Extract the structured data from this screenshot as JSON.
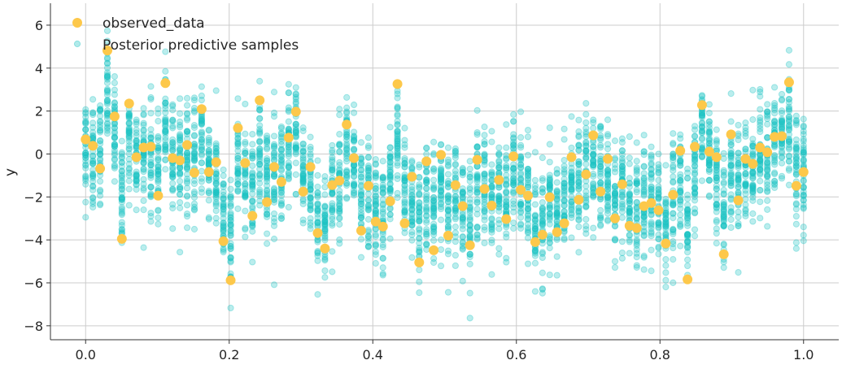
{
  "chart_data": {
    "type": "scatter",
    "title": "",
    "xlabel": "",
    "ylabel": "y",
    "xlim": [
      -0.049,
      1.049
    ],
    "ylim": [
      -8.65,
      7.02
    ],
    "xticks": [
      0.0,
      0.2,
      0.4,
      0.6,
      0.8,
      1.0
    ],
    "xtick_labels": [
      "0.0",
      "0.2",
      "0.4",
      "0.6",
      "0.8",
      "1.0"
    ],
    "yticks": [
      -8,
      -6,
      -4,
      -2,
      0,
      2,
      4,
      6
    ],
    "ytick_labels": [
      "−8",
      "−6",
      "−4",
      "−2",
      "0",
      "2",
      "4",
      "6"
    ],
    "grid": true,
    "legend_placement": "top-left",
    "colors": {
      "observed": "#fdc84a",
      "samples": "#1cc2c2"
    },
    "series": [
      {
        "name": "observed_data",
        "x_range": [
          0,
          1
        ],
        "count": 100,
        "y": [
          0.68,
          0.38,
          -0.68,
          4.82,
          1.75,
          -3.95,
          2.35,
          -0.15,
          0.3,
          0.34,
          -1.94,
          3.3,
          -0.19,
          -0.3,
          0.42,
          -0.87,
          2.09,
          -0.84,
          -0.38,
          -4.06,
          -5.88,
          1.21,
          -0.42,
          -2.88,
          2.5,
          -2.24,
          -0.6,
          -1.3,
          0.76,
          1.97,
          -1.75,
          -0.6,
          -3.68,
          -4.4,
          -1.45,
          -1.24,
          1.37,
          -0.19,
          -3.57,
          -1.48,
          -3.15,
          -3.38,
          -2.2,
          3.26,
          -3.23,
          -1.06,
          -5.05,
          -0.34,
          -4.48,
          -0.04,
          -3.8,
          -1.45,
          -2.43,
          -4.25,
          -0.27,
          -1.63,
          -2.4,
          -1.21,
          -3.03,
          -0.11,
          -1.67,
          -1.94,
          -4.1,
          -3.76,
          -2.01,
          -3.64,
          -3.23,
          -0.15,
          -2.13,
          -0.95,
          0.87,
          -1.75,
          -0.23,
          -3.0,
          -1.41,
          -3.34,
          -3.45,
          -2.43,
          -2.28,
          -2.62,
          -4.17,
          -1.9,
          0.15,
          -5.84,
          0.34,
          2.28,
          0.11,
          -0.15,
          -4.67,
          0.91,
          -2.16,
          -0.23,
          -0.46,
          0.3,
          0.08,
          0.8,
          0.83,
          3.34,
          -1.48,
          -0.84
        ]
      },
      {
        "name": "Posterior predictive samples"
      }
    ]
  }
}
